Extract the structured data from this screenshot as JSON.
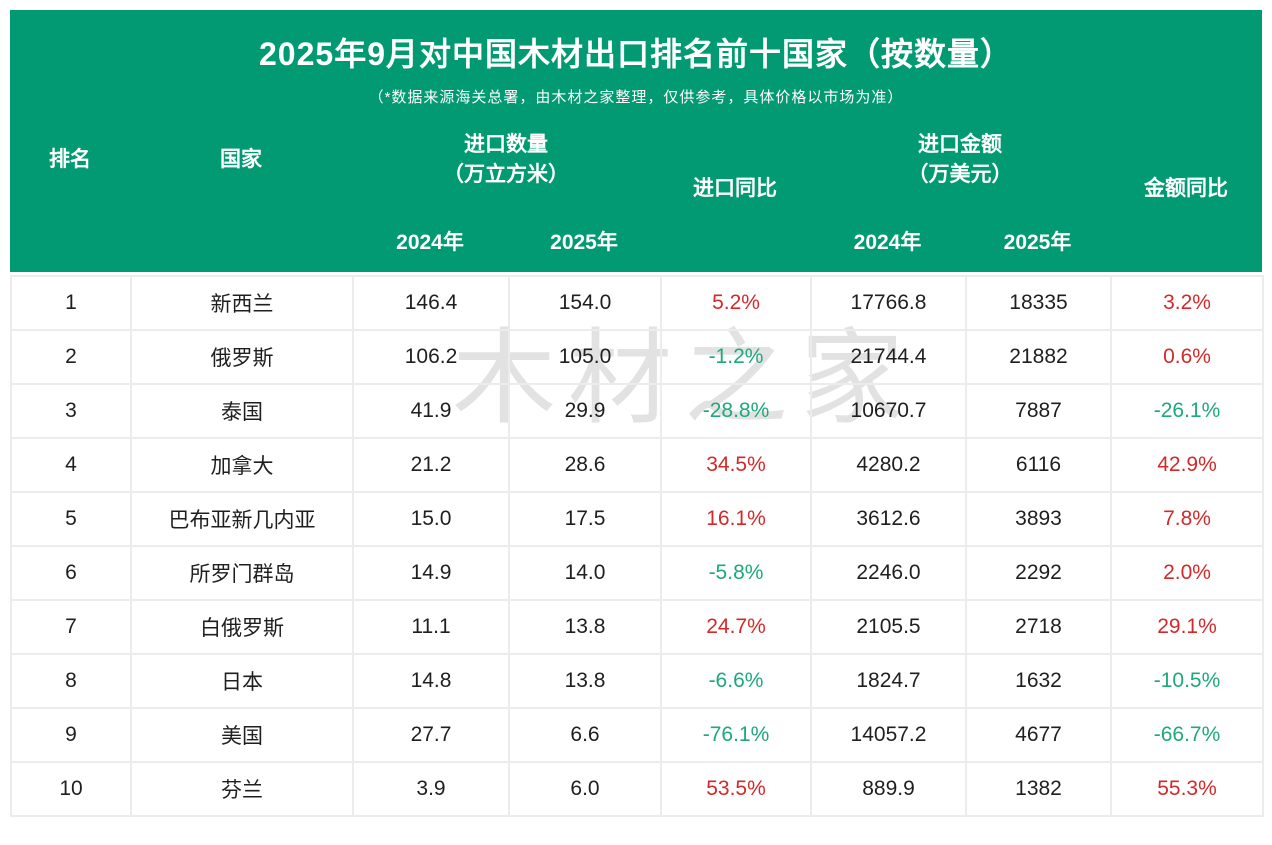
{
  "header": {
    "title": "2025年9月对中国木材出口排名前十国家（按数量）",
    "subtitle": "（*数据来源海关总署，由木材之家整理，仅供参考，具体价格以市场为准）"
  },
  "columns": {
    "rank": "排名",
    "country": "国家",
    "qty_group_line1": "进口数量",
    "qty_group_line2": "（万立方米）",
    "qty_yoy": "进口同比",
    "amt_group_line1": "进口金额",
    "amt_group_line2": "（万美元）",
    "amt_yoy": "金额同比",
    "year_2024_qty": "2024年",
    "year_2025_qty": "2025年",
    "year_2024_amt": "2024年",
    "year_2025_amt": "2025年"
  },
  "colors": {
    "header_bg": "#029a72",
    "increase": "#d22a2a",
    "decrease": "#1fa87b"
  },
  "watermark": "木材之家",
  "chart_data": {
    "type": "table",
    "title": "2025年9月对中国木材出口排名前十国家（按数量）",
    "subtitle": "（*数据来源海关总署，由木材之家整理，仅供参考，具体价格以市场为准）",
    "columns": [
      "排名",
      "国家",
      "进口数量2024年（万立方米）",
      "进口数量2025年（万立方米）",
      "进口同比",
      "进口金额2024年（万美元）",
      "进口金额2025年（万美元）",
      "金额同比"
    ],
    "rows": [
      [
        "1",
        "新西兰",
        "146.4",
        "154.0",
        "5.2%",
        "17766.8",
        "18335",
        "3.2%"
      ],
      [
        "2",
        "俄罗斯",
        "106.2",
        "105.0",
        "-1.2%",
        "21744.4",
        "21882",
        "0.6%"
      ],
      [
        "3",
        "泰国",
        "41.9",
        "29.9",
        "-28.8%",
        "10670.7",
        "7887",
        "-26.1%"
      ],
      [
        "4",
        "加拿大",
        "21.2",
        "28.6",
        "34.5%",
        "4280.2",
        "6116",
        "42.9%"
      ],
      [
        "5",
        "巴布亚新几内亚",
        "15.0",
        "17.5",
        "16.1%",
        "3612.6",
        "3893",
        "7.8%"
      ],
      [
        "6",
        "所罗门群岛",
        "14.9",
        "14.0",
        "-5.8%",
        "2246.0",
        "2292",
        "2.0%"
      ],
      [
        "7",
        "白俄罗斯",
        "11.1",
        "13.8",
        "24.7%",
        "2105.5",
        "2718",
        "29.1%"
      ],
      [
        "8",
        "日本",
        "14.8",
        "13.8",
        "-6.6%",
        "1824.7",
        "1632",
        "-10.5%"
      ],
      [
        "9",
        "美国",
        "27.7",
        "6.6",
        "-76.1%",
        "14057.2",
        "4677",
        "-66.7%"
      ],
      [
        "10",
        "芬兰",
        "3.9",
        "6.0",
        "53.5%",
        "889.9",
        "1382",
        "55.3%"
      ]
    ]
  }
}
